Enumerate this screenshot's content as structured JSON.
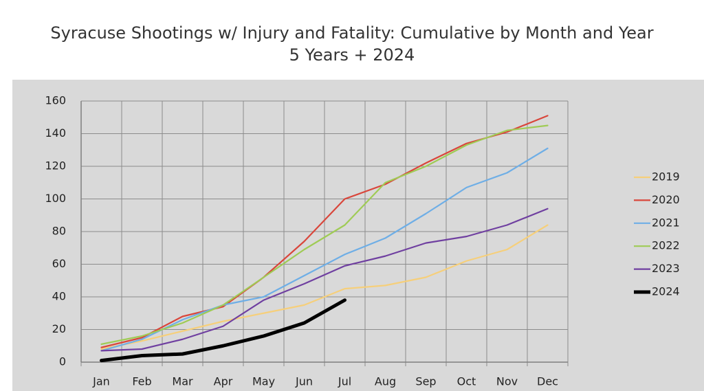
{
  "chart_data": {
    "type": "line",
    "title": "Syracuse Shootings w/ Injury and Fatality: Cumulative by Month and Year",
    "subtitle": "5 Years + 2024",
    "categories": [
      "Jan",
      "Feb",
      "Mar",
      "Apr",
      "May",
      "Jun",
      "Jul",
      "Aug",
      "Sep",
      "Oct",
      "Nov",
      "Dec"
    ],
    "series": [
      {
        "name": "2019",
        "color": "#f6cf7a",
        "values": [
          8,
          13,
          19,
          25,
          30,
          35,
          45,
          47,
          52,
          62,
          69,
          84
        ]
      },
      {
        "name": "2020",
        "color": "#d9463b",
        "values": [
          9,
          15,
          28,
          34,
          52,
          74,
          100,
          109,
          122,
          134,
          141,
          151
        ]
      },
      {
        "name": "2021",
        "color": "#6eaee6",
        "values": [
          7,
          14,
          26,
          35,
          40,
          53,
          66,
          76,
          91,
          107,
          116,
          131
        ]
      },
      {
        "name": "2022",
        "color": "#9fcb55",
        "values": [
          11,
          16,
          24,
          35,
          52,
          69,
          84,
          110,
          120,
          133,
          142,
          145
        ]
      },
      {
        "name": "2023",
        "color": "#6f3fa0",
        "values": [
          7,
          8,
          14,
          22,
          38,
          48,
          59,
          65,
          73,
          77,
          84,
          94
        ]
      },
      {
        "name": "2024",
        "color": "#000000",
        "values": [
          1,
          4,
          5,
          10,
          16,
          24,
          38,
          null,
          null,
          null,
          null,
          null
        ]
      }
    ],
    "ylim": [
      0,
      160
    ],
    "yticks": [
      0,
      20,
      40,
      60,
      80,
      100,
      120,
      140,
      160
    ],
    "grid": true,
    "legend": "right"
  }
}
